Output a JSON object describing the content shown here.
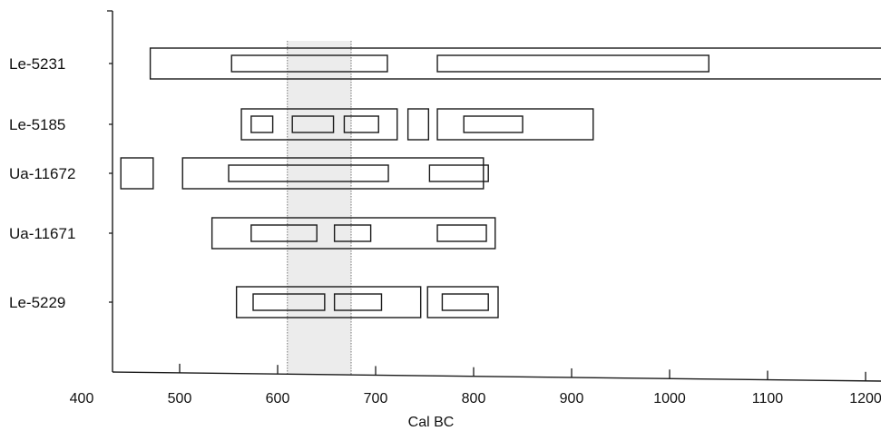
{
  "chart_data": {
    "type": "range",
    "xlabel": "Cal BC",
    "xlim": [
      400,
      1200
    ],
    "xticks": [
      400,
      500,
      600,
      700,
      800,
      900,
      1000,
      1100,
      1200
    ],
    "xtick_labels": [
      "400",
      "500",
      "600",
      "700",
      "800",
      "900",
      "1000",
      "1100",
      "1200"
    ],
    "highlight_band": [
      610,
      675
    ],
    "rows": [
      {
        "label": "Le-5231",
        "outer": [
          [
            470,
            1280
          ]
        ],
        "inner": [
          [
            553,
            712
          ],
          [
            763,
            1040
          ]
        ]
      },
      {
        "label": "Le-5185",
        "outer": [
          [
            563,
            722
          ],
          [
            733,
            754
          ],
          [
            763,
            922
          ]
        ],
        "inner": [
          [
            573,
            595
          ],
          [
            615,
            657
          ],
          [
            668,
            703
          ],
          [
            790,
            850
          ]
        ]
      },
      {
        "label": "Ua-11672",
        "outer": [
          [
            440,
            473
          ],
          [
            503,
            810
          ]
        ],
        "inner": [
          [
            550,
            713
          ],
          [
            755,
            815
          ]
        ]
      },
      {
        "label": "Ua-11671",
        "outer": [
          [
            533,
            822
          ]
        ],
        "inner": [
          [
            573,
            640
          ],
          [
            658,
            695
          ],
          [
            763,
            813
          ]
        ]
      },
      {
        "label": "Le-5229",
        "outer": [
          [
            558,
            746
          ],
          [
            753,
            825
          ]
        ],
        "inner": [
          [
            575,
            648
          ],
          [
            658,
            706
          ],
          [
            768,
            815
          ]
        ]
      }
    ]
  }
}
